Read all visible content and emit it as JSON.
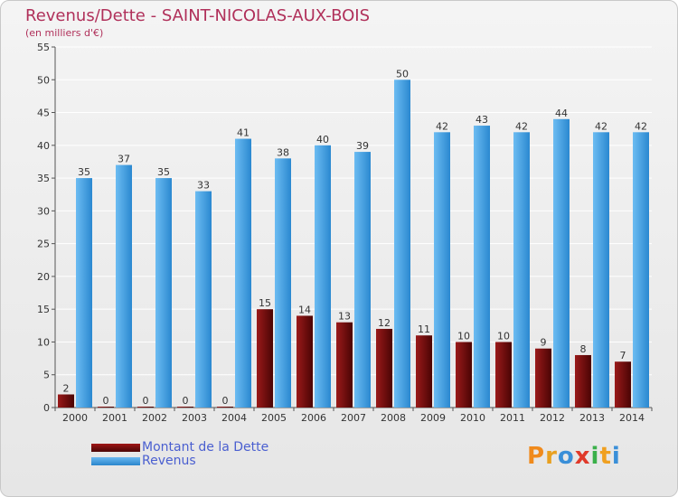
{
  "title": "Revenus/Dette - SAINT-NICOLAS-AUX-BOIS",
  "subtitle": "(en milliers d'€)",
  "legend": {
    "debt_label": "Montant de la Dette",
    "revenue_label": "Revenus"
  },
  "logo": {
    "text": "Proxiti"
  },
  "colors": {
    "revenue": "#4aa3e6",
    "debt": "#7a0a0a",
    "title": "#b0305a",
    "legend_text": "#4a5fd0"
  },
  "chart_data": {
    "type": "bar",
    "categories": [
      "2000",
      "2001",
      "2002",
      "2003",
      "2004",
      "2005",
      "2006",
      "2007",
      "2008",
      "2009",
      "2010",
      "2011",
      "2012",
      "2013",
      "2014"
    ],
    "series": [
      {
        "name": "Montant de la Dette",
        "values": [
          2,
          0,
          0,
          0,
          0,
          15,
          14,
          13,
          12,
          11,
          10,
          10,
          9,
          8,
          7
        ]
      },
      {
        "name": "Revenus",
        "values": [
          35,
          37,
          35,
          33,
          41,
          38,
          40,
          39,
          50,
          42,
          43,
          42,
          44,
          42,
          42
        ]
      }
    ],
    "ylim": [
      0,
      55
    ],
    "yticks": [
      0,
      5,
      10,
      15,
      20,
      25,
      30,
      35,
      40,
      45,
      50,
      55
    ],
    "grid": true
  }
}
